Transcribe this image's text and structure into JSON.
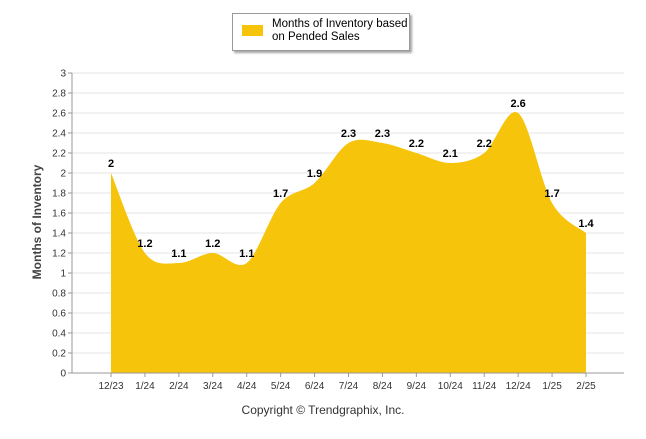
{
  "chart_data": {
    "type": "area",
    "categories": [
      "12/23",
      "1/24",
      "2/24",
      "3/24",
      "4/24",
      "5/24",
      "6/24",
      "7/24",
      "8/24",
      "9/24",
      "10/24",
      "11/24",
      "12/24",
      "1/25",
      "2/25"
    ],
    "series": [
      {
        "name": "Months of Inventory based on Pended Sales",
        "values": [
          2,
          1.2,
          1.1,
          1.2,
          1.1,
          1.7,
          1.9,
          2.3,
          2.3,
          2.2,
          2.1,
          2.2,
          2.6,
          1.7,
          1.4
        ],
        "data_labels": [
          "2",
          "1.2",
          "1.1",
          "1.2",
          "1.1",
          "1.7",
          "1.9",
          "2.3",
          "2.3",
          "2.2",
          "2.1",
          "2.2",
          "2.6",
          "1.7",
          "1.4"
        ]
      }
    ],
    "ylabel": "Months of Inventory",
    "xlabel": "",
    "ylim": [
      0,
      3
    ],
    "yticks": [
      "0",
      "0.2",
      "0.4",
      "0.6",
      "0.8",
      "1",
      "1.2",
      "1.4",
      "1.6",
      "1.8",
      "2",
      "2.2",
      "2.4",
      "2.6",
      "2.8",
      "3"
    ],
    "grid": true,
    "legend_position": "top-center",
    "colors": {
      "area": "#f7c40c",
      "grid": "#e6e6e6",
      "axis": "#999999"
    }
  },
  "legend": {
    "label": "Months of Inventory based on Pended Sales"
  },
  "footer": {
    "copyright": "Copyright © Trendgraphix, Inc."
  }
}
